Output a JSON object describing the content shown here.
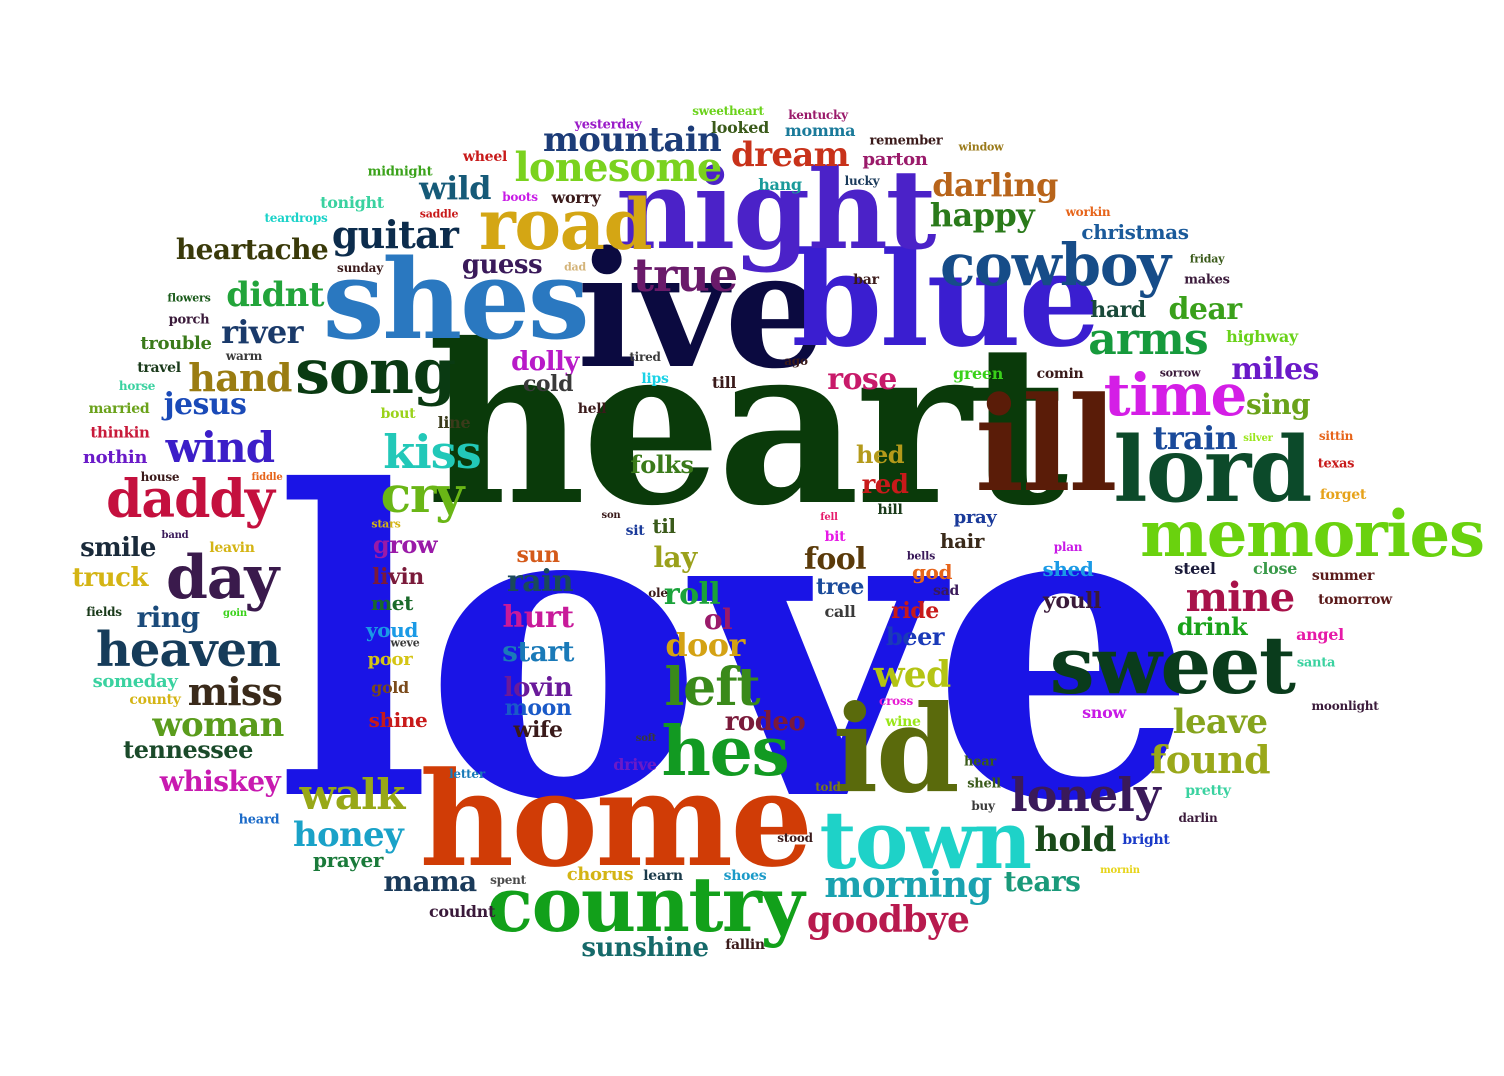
{
  "words": [
    {
      "text": "love",
      "color": "#1a14e6"
    },
    {
      "text": "heart",
      "color": "#0a3a0a"
    },
    {
      "text": "ive",
      "color": "#0b0a40"
    },
    {
      "text": "blue",
      "color": "#3a1ed0"
    },
    {
      "text": "shes",
      "color": "#2a78c0"
    },
    {
      "text": "night",
      "color": "#4b22c8"
    },
    {
      "text": "ill",
      "color": "#5a1c08"
    },
    {
      "text": "home",
      "color": "#d03c06"
    },
    {
      "text": "id",
      "color": "#5a6a0c"
    },
    {
      "text": "lord",
      "color": "#0c4a2a"
    },
    {
      "text": "sweet",
      "color": "#0a3c1c"
    },
    {
      "text": "memories",
      "color": "#6ad20e"
    },
    {
      "text": "country",
      "color": "#12a01a"
    },
    {
      "text": "town",
      "color": "#1ed2c8"
    },
    {
      "text": "road",
      "color": "#d4a614"
    },
    {
      "text": "cowboy",
      "color": "#164c88"
    },
    {
      "text": "song",
      "color": "#0a3a12"
    },
    {
      "text": "time",
      "color": "#d41ee6"
    },
    {
      "text": "daddy",
      "color": "#c4103e"
    },
    {
      "text": "day",
      "color": "#3a1a4c"
    },
    {
      "text": "heaven",
      "color": "#163c5a"
    },
    {
      "text": "hes",
      "color": "#129a22"
    },
    {
      "text": "left",
      "color": "#3a8a1a"
    },
    {
      "text": "lonely",
      "color": "#3a1a5a"
    },
    {
      "text": "cry",
      "color": "#6ab616"
    },
    {
      "text": "kiss",
      "color": "#22c8b8"
    },
    {
      "text": "true",
      "color": "#6a1a6a"
    },
    {
      "text": "lonesome",
      "color": "#7ad21e"
    },
    {
      "text": "wind",
      "color": "#3c1ec8"
    },
    {
      "text": "arms",
      "color": "#169a3c"
    },
    {
      "text": "walk",
      "color": "#98a818"
    },
    {
      "text": "goodbye",
      "color": "#b81a4e"
    },
    {
      "text": "morning",
      "color": "#1aa2b0"
    },
    {
      "text": "mountain",
      "color": "#1c3c78"
    },
    {
      "text": "dream",
      "color": "#c8321a"
    },
    {
      "text": "guitar",
      "color": "#0c2c4c"
    },
    {
      "text": "hand",
      "color": "#9a7c12"
    },
    {
      "text": "miss",
      "color": "#3a2a1a"
    },
    {
      "text": "woman",
      "color": "#5a9c1c"
    },
    {
      "text": "found",
      "color": "#9aa81a"
    },
    {
      "text": "leave",
      "color": "#86a41e"
    },
    {
      "text": "mine",
      "color": "#a8124a"
    },
    {
      "text": "train",
      "color": "#1a4a9a"
    },
    {
      "text": "honey",
      "color": "#1aa2c8"
    },
    {
      "text": "hold",
      "color": "#1a4a1a"
    },
    {
      "text": "tears",
      "color": "#1a9a7a"
    },
    {
      "text": "mama",
      "color": "#1a3a5a"
    },
    {
      "text": "sunshine",
      "color": "#166a6a"
    },
    {
      "text": "darling",
      "color": "#b8641a"
    },
    {
      "text": "happy",
      "color": "#2a7a1a"
    },
    {
      "text": "wild",
      "color": "#165a78"
    },
    {
      "text": "didnt",
      "color": "#22a43a"
    },
    {
      "text": "river",
      "color": "#1a3a6a"
    },
    {
      "text": "heartache",
      "color": "#3a3a0a"
    },
    {
      "text": "guess",
      "color": "#3a1a5a"
    },
    {
      "text": "jesus",
      "color": "#1a4ab8"
    },
    {
      "text": "dear",
      "color": "#3aa01a"
    },
    {
      "text": "miles",
      "color": "#6a1ac8"
    },
    {
      "text": "sing",
      "color": "#6aa21a"
    },
    {
      "text": "smile",
      "color": "#1a2a3a"
    },
    {
      "text": "truck",
      "color": "#d4b414"
    },
    {
      "text": "ring",
      "color": "#1a4a7a"
    },
    {
      "text": "whiskey",
      "color": "#c81ab0"
    },
    {
      "text": "tennessee",
      "color": "#1a4a2a"
    },
    {
      "text": "rose",
      "color": "#c81a6a"
    },
    {
      "text": "fool",
      "color": "#5a3a0a"
    },
    {
      "text": "rain",
      "color": "#1a4a5a"
    },
    {
      "text": "hurt",
      "color": "#c81a9a"
    },
    {
      "text": "start",
      "color": "#1a7ab8"
    },
    {
      "text": "lovin",
      "color": "#6a1a9a"
    },
    {
      "text": "moon",
      "color": "#1a5ac8"
    },
    {
      "text": "wife",
      "color": "#3a1a1a"
    },
    {
      "text": "sun",
      "color": "#d45a1a"
    },
    {
      "text": "roll",
      "color": "#1aa23a"
    },
    {
      "text": "door",
      "color": "#d4a214"
    },
    {
      "text": "lay",
      "color": "#9aa01a"
    },
    {
      "text": "wed",
      "color": "#b4c414"
    },
    {
      "text": "rodeo",
      "color": "#7a1a3a"
    },
    {
      "text": "folks",
      "color": "#3a7a1a"
    },
    {
      "text": "hed",
      "color": "#b49a1a"
    },
    {
      "text": "red",
      "color": "#c81a1a"
    },
    {
      "text": "ol",
      "color": "#9a1a6a"
    },
    {
      "text": "dolly",
      "color": "#b81ac8"
    },
    {
      "text": "cold",
      "color": "#3a3a3a"
    },
    {
      "text": "hard",
      "color": "#1a4a3a"
    },
    {
      "text": "christmas",
      "color": "#1a5a9a"
    },
    {
      "text": "beer",
      "color": "#1a3ab8"
    },
    {
      "text": "drink",
      "color": "#1aa21a"
    },
    {
      "text": "grow",
      "color": "#9a1aa8"
    },
    {
      "text": "livin",
      "color": "#7a1a3a"
    },
    {
      "text": "met",
      "color": "#1a6a2a"
    },
    {
      "text": "youd",
      "color": "#1a9ae6"
    },
    {
      "text": "poor",
      "color": "#d4c414"
    },
    {
      "text": "shine",
      "color": "#c81a1a"
    },
    {
      "text": "gold",
      "color": "#7a4a1a"
    },
    {
      "text": "someday",
      "color": "#3ad2a0"
    },
    {
      "text": "county",
      "color": "#d4b414"
    },
    {
      "text": "prayer",
      "color": "#1a7a3a"
    },
    {
      "text": "couldnt",
      "color": "#3a1a3a"
    },
    {
      "text": "chorus",
      "color": "#d4b414"
    },
    {
      "text": "learn",
      "color": "#1a3a4a"
    },
    {
      "text": "shoes",
      "color": "#1a9ac8"
    },
    {
      "text": "spent",
      "color": "#4a4a4a"
    },
    {
      "text": "fallin",
      "color": "#3a1a1a"
    },
    {
      "text": "ride",
      "color": "#c81a1a"
    },
    {
      "text": "god",
      "color": "#e6641a"
    },
    {
      "text": "shed",
      "color": "#1a9ae6"
    },
    {
      "text": "youll",
      "color": "#3a1a3a"
    },
    {
      "text": "hair",
      "color": "#3a2a1a"
    },
    {
      "text": "pray",
      "color": "#1a3a9a"
    },
    {
      "text": "tree",
      "color": "#1a4a9a"
    },
    {
      "text": "call",
      "color": "#3a3a3a"
    },
    {
      "text": "sad",
      "color": "#3a1a5a"
    },
    {
      "text": "steel",
      "color": "#1a1a3a"
    },
    {
      "text": "close",
      "color": "#3a9a4a"
    },
    {
      "text": "summer",
      "color": "#5a1a1a"
    },
    {
      "text": "tomorrow",
      "color": "#5a1a1a"
    },
    {
      "text": "angel",
      "color": "#e61aa8"
    },
    {
      "text": "santa",
      "color": "#3ad2a0"
    },
    {
      "text": "moonlight",
      "color": "#3a1a3a"
    },
    {
      "text": "snow",
      "color": "#c81ae6"
    },
    {
      "text": "wine",
      "color": "#9ae61a"
    },
    {
      "text": "cross",
      "color": "#e61ad2"
    },
    {
      "text": "hear",
      "color": "#3a5a1a"
    },
    {
      "text": "shell",
      "color": "#3a5a1a"
    },
    {
      "text": "buy",
      "color": "#3a3a3a"
    },
    {
      "text": "pretty",
      "color": "#3ad2a0"
    },
    {
      "text": "darlin",
      "color": "#3a1a3a"
    },
    {
      "text": "bright",
      "color": "#1a3ac8"
    },
    {
      "text": "mornin",
      "color": "#e6d41a"
    },
    {
      "text": "stood",
      "color": "#3a1a1a"
    },
    {
      "text": "told",
      "color": "#7a7a1a"
    },
    {
      "text": "drive",
      "color": "#6a1ac8"
    },
    {
      "text": "soft",
      "color": "#3a3a3a"
    },
    {
      "text": "letter",
      "color": "#1a7ab8"
    },
    {
      "text": "heard",
      "color": "#1a6ac8"
    },
    {
      "text": "weve",
      "color": "#3a3a3a"
    },
    {
      "text": "leavin",
      "color": "#d4b414"
    },
    {
      "text": "band",
      "color": "#3a1a5a"
    },
    {
      "text": "goin",
      "color": "#3ad21a"
    },
    {
      "text": "fields",
      "color": "#1a3a1a"
    },
    {
      "text": "stars",
      "color": "#d4b414"
    },
    {
      "text": "son",
      "color": "#3a1a1a"
    },
    {
      "text": "sit",
      "color": "#1a3a9a"
    },
    {
      "text": "til",
      "color": "#3a5a1a"
    },
    {
      "text": "fell",
      "color": "#e61a6a"
    },
    {
      "text": "bit",
      "color": "#e61ae6"
    },
    {
      "text": "hill",
      "color": "#1a3a1a"
    },
    {
      "text": "bells",
      "color": "#3a1a5a"
    },
    {
      "text": "plan",
      "color": "#c81ae6"
    },
    {
      "text": "house",
      "color": "#3a1a1a"
    },
    {
      "text": "fiddle",
      "color": "#e6641a"
    },
    {
      "text": "nothin",
      "color": "#6a1ac8"
    },
    {
      "text": "thinkin",
      "color": "#c81a3a"
    },
    {
      "text": "married",
      "color": "#6aa21a"
    },
    {
      "text": "horse",
      "color": "#3ad2a0"
    },
    {
      "text": "travel",
      "color": "#1a3a1a"
    },
    {
      "text": "warm",
      "color": "#3a3a3a"
    },
    {
      "text": "trouble",
      "color": "#3a7a1a"
    },
    {
      "text": "porch",
      "color": "#3a1a3a"
    },
    {
      "text": "flowers",
      "color": "#1a5a1a"
    },
    {
      "text": "teardrops",
      "color": "#1ad2c8"
    },
    {
      "text": "tonight",
      "color": "#3ad2a0"
    },
    {
      "text": "midnight",
      "color": "#3aa21a"
    },
    {
      "text": "sunday",
      "color": "#3a1a1a"
    },
    {
      "text": "wheel",
      "color": "#c81a1a"
    },
    {
      "text": "saddle",
      "color": "#c81a1a"
    },
    {
      "text": "boots",
      "color": "#c81ae6"
    },
    {
      "text": "worry",
      "color": "#3a1a1a"
    },
    {
      "text": "dad",
      "color": "#d4b47a"
    },
    {
      "text": "yesterday",
      "color": "#9a1ac8"
    },
    {
      "text": "sweetheart",
      "color": "#6ad21a"
    },
    {
      "text": "kentucky",
      "color": "#9a1a6a"
    },
    {
      "text": "looked",
      "color": "#3a5a1a"
    },
    {
      "text": "momma",
      "color": "#1a7a9a"
    },
    {
      "text": "remember",
      "color": "#3a1a1a"
    },
    {
      "text": "window",
      "color": "#9a7a1a"
    },
    {
      "text": "parton",
      "color": "#9a1a6a"
    },
    {
      "text": "hang",
      "color": "#1a9a9a"
    },
    {
      "text": "lucky",
      "color": "#1a3a5a"
    },
    {
      "text": "workin",
      "color": "#e6641a"
    },
    {
      "text": "friday",
      "color": "#3a5a1a"
    },
    {
      "text": "makes",
      "color": "#3a1a3a"
    },
    {
      "text": "bar",
      "color": "#3a1a1a"
    },
    {
      "text": "highway",
      "color": "#6ad21a"
    },
    {
      "text": "comin",
      "color": "#3a1a1a"
    },
    {
      "text": "green",
      "color": "#3ad21a"
    },
    {
      "text": "sorrow",
      "color": "#3a1a3a"
    },
    {
      "text": "silver",
      "color": "#9ae61a"
    },
    {
      "text": "sittin",
      "color": "#e6641a"
    },
    {
      "text": "texas",
      "color": "#c81a1a"
    },
    {
      "text": "forget",
      "color": "#e6a21a"
    },
    {
      "text": "ago",
      "color": "#3a1a1a"
    },
    {
      "text": "tired",
      "color": "#3a3a3a"
    },
    {
      "text": "lips",
      "color": "#1ad2e6"
    },
    {
      "text": "till",
      "color": "#3a1a1a"
    },
    {
      "text": "hell",
      "color": "#3a1a1a"
    },
    {
      "text": "line",
      "color": "#3a3a1a"
    },
    {
      "text": "bout",
      "color": "#9ad21a"
    },
    {
      "text": "ole",
      "color": "#3a1a1a"
    }
  ]
}
